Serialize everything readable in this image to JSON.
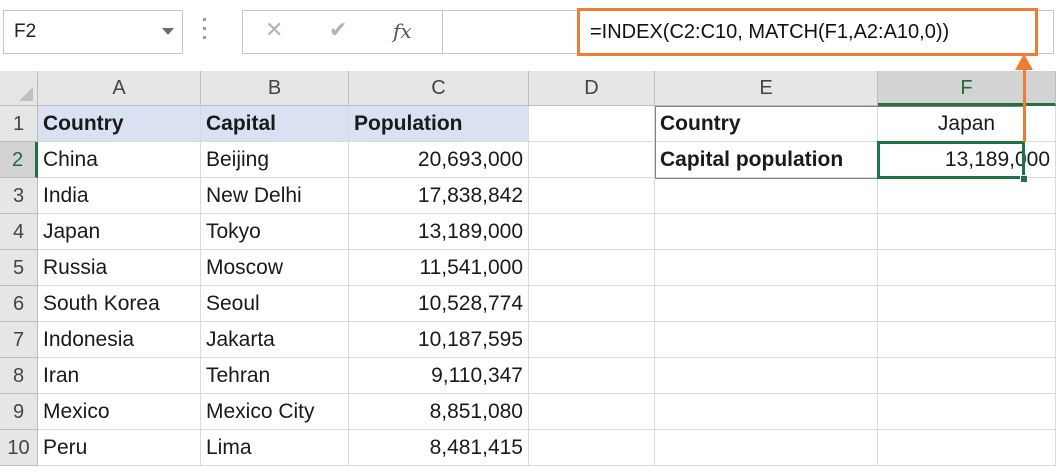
{
  "formula_bar": {
    "name_box": "F2",
    "cancel_icon": "✕",
    "enter_icon": "✔",
    "fx_icon": "fx",
    "formula": "=INDEX(C2:C10, MATCH(F1,A2:A10,0))",
    "highlight_color": "#ed7d31"
  },
  "sheet": {
    "columns": [
      "A",
      "B",
      "C",
      "D",
      "E",
      "F"
    ],
    "selected_column": "F",
    "selected_row": "2",
    "rows": [
      {
        "num": "1",
        "A": "Country",
        "B": "Capital",
        "C": "Population",
        "E": "Country",
        "F": "Japan"
      },
      {
        "num": "2",
        "A": "China",
        "B": "Beijing",
        "C": "20,693,000",
        "E": "Capital population",
        "F": "13,189,000"
      },
      {
        "num": "3",
        "A": "India",
        "B": "New Delhi",
        "C": "17,838,842"
      },
      {
        "num": "4",
        "A": "Japan",
        "B": "Tokyo",
        "C": "13,189,000"
      },
      {
        "num": "5",
        "A": "Russia",
        "B": "Moscow",
        "C": "11,541,000"
      },
      {
        "num": "6",
        "A": "South Korea",
        "B": "Seoul",
        "C": "10,528,774"
      },
      {
        "num": "7",
        "A": "Indonesia",
        "B": "Jakarta",
        "C": "10,187,595"
      },
      {
        "num": "8",
        "A": "Iran",
        "B": "Tehran",
        "C": "9,110,347"
      },
      {
        "num": "9",
        "A": "Mexico",
        "B": "Mexico City",
        "C": "8,851,080"
      },
      {
        "num": "10",
        "A": "Peru",
        "B": "Lima",
        "C": "8,481,415"
      }
    ],
    "header_fill": "#d9e1f2",
    "active_color": "#217346"
  }
}
